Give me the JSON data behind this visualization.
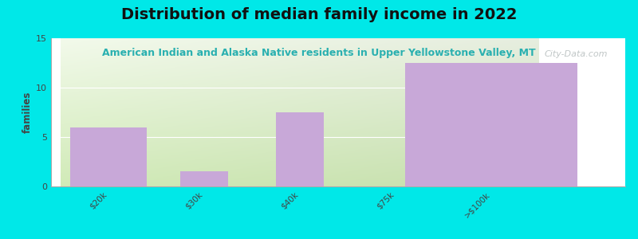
{
  "title": "Distribution of median family income in 2022",
  "subtitle": "American Indian and Alaska Native residents in Upper Yellowstone Valley, MT",
  "categories": [
    "$20k",
    "$30k",
    "$40k",
    "$75k",
    ">$100k"
  ],
  "values": [
    6,
    1.5,
    7.5,
    0,
    12.5
  ],
  "bar_color": "#c8a8d8",
  "bar_edgecolor": "#9b7bae",
  "background_color": "#00e8e8",
  "ylabel": "families",
  "ylim": [
    0,
    15
  ],
  "yticks": [
    0,
    5,
    10,
    15
  ],
  "title_fontsize": 14,
  "subtitle_fontsize": 9,
  "subtitle_color": "#2ab0b0",
  "watermark": "City-Data.com",
  "watermark_color": "#b0b8b8",
  "plot_bg_color_tl": "#f0f7e8",
  "plot_bg_color_tr": "#f8fcf5",
  "plot_bg_color_bl": "#ddeec8",
  "plot_bg_color_br": "#eef6e0"
}
